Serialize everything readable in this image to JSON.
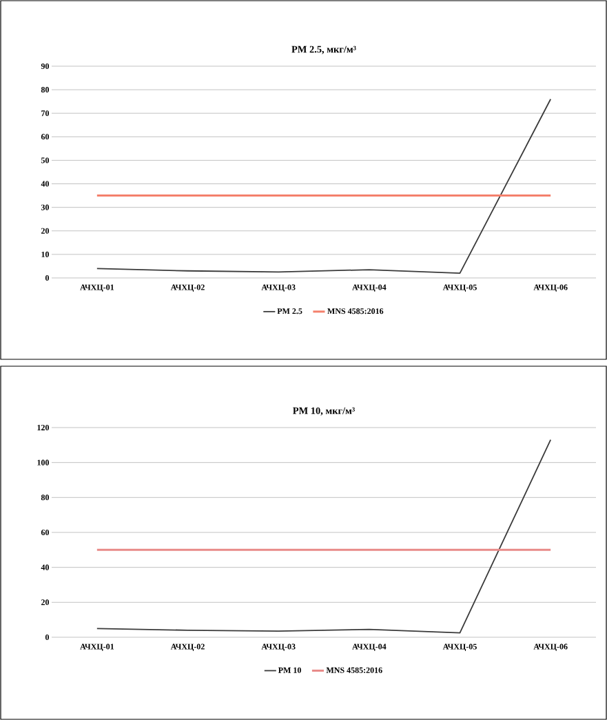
{
  "chart_data": [
    {
      "type": "line",
      "title": "PM 2.5, мкг/м³",
      "categories": [
        "АЧХЦ-01",
        "АЧХЦ-02",
        "АЧХЦ-03",
        "АЧХЦ-04",
        "АЧХЦ-05",
        "АЧХЦ-06"
      ],
      "series": [
        {
          "name": "PM 2.5",
          "color": "#3a3a3a",
          "values": [
            4,
            3,
            2.5,
            3.5,
            2,
            76
          ]
        },
        {
          "name": "MNS 4585:2016",
          "color": "#f4806c",
          "values": [
            35,
            35,
            35,
            35,
            35,
            35
          ]
        }
      ],
      "ylim": [
        0,
        90
      ],
      "yticks": [
        0,
        10,
        20,
        30,
        40,
        50,
        60,
        70,
        80,
        90
      ],
      "grid": "y",
      "legend": "bottom"
    },
    {
      "type": "line",
      "title": "PM 10, мкг/м³",
      "categories": [
        "АЧХЦ-01",
        "АЧХЦ-02",
        "АЧХЦ-03",
        "АЧХЦ-04",
        "АЧХЦ-05",
        "АЧХЦ-06"
      ],
      "series": [
        {
          "name": "PM 10",
          "color": "#3a3a3a",
          "values": [
            5,
            4,
            3.5,
            4.5,
            2.5,
            113
          ]
        },
        {
          "name": "MNS 4585:2016",
          "color": "#e88a88",
          "values": [
            50,
            50,
            50,
            50,
            50,
            50
          ]
        }
      ],
      "ylim": [
        0,
        120
      ],
      "yticks": [
        0,
        20,
        40,
        60,
        80,
        100,
        120
      ],
      "grid": "y",
      "legend": "bottom"
    }
  ]
}
